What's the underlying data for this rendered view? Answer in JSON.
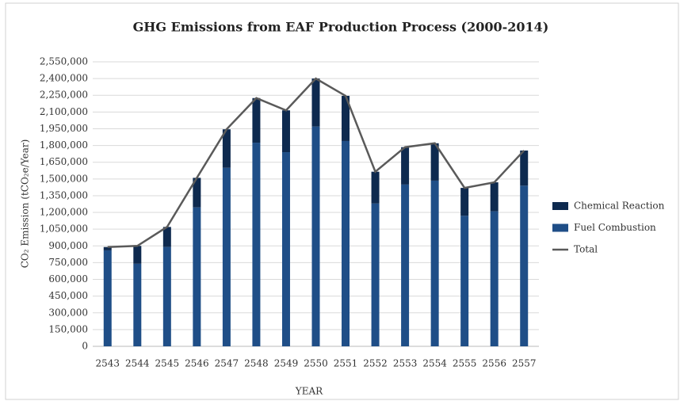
{
  "chart_data": {
    "type": "stacked_bar_line",
    "title": "GHG Emissions from EAF Production Process (2000-2014)",
    "x_label": "YEAR",
    "y_label": "CO₂ Emission (tCO₂e/Year)",
    "categories": [
      "2543",
      "2544",
      "2545",
      "2546",
      "2547",
      "2548",
      "2549",
      "2550",
      "2551",
      "2552",
      "2553",
      "2554",
      "2555",
      "2556",
      "2557"
    ],
    "series": [
      {
        "name": "Chemical Reaction",
        "color": "#0e2a4f",
        "type": "bar",
        "values": [
          30000,
          160000,
          180000,
          265000,
          345000,
          400000,
          375000,
          430000,
          405000,
          285000,
          335000,
          335000,
          250000,
          260000,
          315000
        ]
      },
      {
        "name": "Fuel Combustion",
        "color": "#1f4e87",
        "type": "bar",
        "values": [
          860000,
          740000,
          890000,
          1245000,
          1600000,
          1825000,
          1740000,
          1970000,
          1840000,
          1280000,
          1450000,
          1485000,
          1170000,
          1210000,
          1440000
        ]
      },
      {
        "name": "Total",
        "color": "#5a5a5a",
        "type": "line",
        "values": [
          890000,
          900000,
          1070000,
          1510000,
          1945000,
          2225000,
          2115000,
          2400000,
          2245000,
          1565000,
          1785000,
          1820000,
          1420000,
          1470000,
          1755000
        ]
      }
    ],
    "ylim": [
      0,
      2550000
    ],
    "yticks": [
      0,
      {
        "value": 150000,
        "label": "150,000"
      },
      {
        "value": 300000,
        "label": "300,000"
      },
      {
        "value": 450000,
        "label": "450,000"
      },
      {
        "value": 600000,
        "label": "600,000"
      },
      {
        "value": 750000,
        "label": "750,000"
      },
      {
        "value": 900000,
        "label": "900,000"
      },
      {
        "value": 1050000,
        "label": "1,050,000"
      },
      {
        "value": 1200000,
        "label": "1,200,000"
      },
      {
        "value": 1350000,
        "label": "1,350,000"
      },
      {
        "value": 1500000,
        "label": "1,500,000"
      },
      {
        "value": 1650000,
        "label": "1,650,000"
      },
      {
        "value": 1800000,
        "label": "1,800,000"
      },
      {
        "value": 1950000,
        "label": "1,950,000"
      },
      {
        "value": 2100000,
        "label": "2,100,000"
      },
      {
        "value": 2250000,
        "label": "2,250,000"
      },
      {
        "value": 2400000,
        "label": "2,400,000"
      },
      {
        "value": 2550000,
        "label": "2,550,000"
      }
    ],
    "grid": true,
    "legend": "right"
  }
}
